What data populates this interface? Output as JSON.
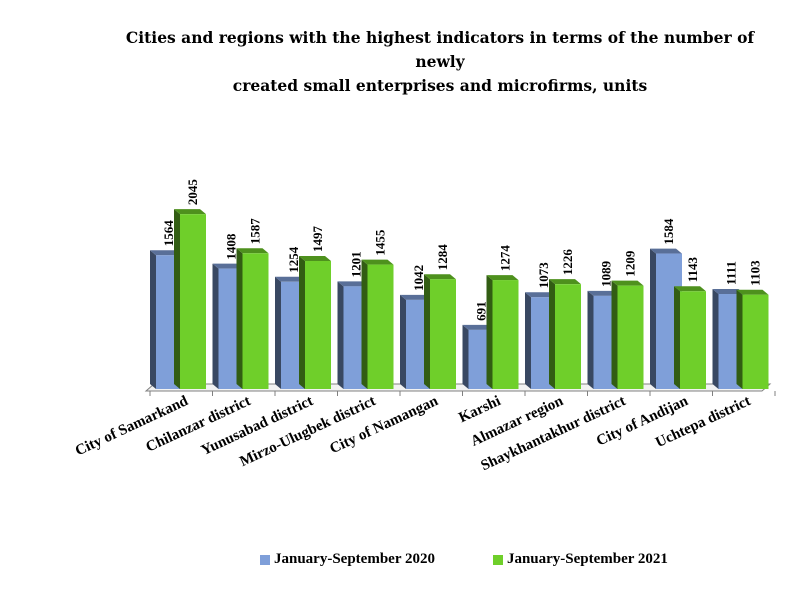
{
  "chart_data": {
    "type": "bar",
    "title_lines": [
      "Cities and regions with the highest indicators in terms of the number of newly",
      "created small enterprises and microfirms, units"
    ],
    "categories": [
      "City of Samarkand",
      "Chilanzar district",
      "Yunusabad district",
      "Mirzo-Ulugbek district",
      "City of Namangan",
      "Karshi",
      "Almazar region",
      "Shaykhantakhur district",
      "City of Andijan",
      "Uchtepa district"
    ],
    "series": [
      {
        "name": "January-September 2020",
        "values": [
          1564,
          1408,
          1254,
          1201,
          1042,
          691,
          1073,
          1089,
          1584,
          1111
        ],
        "color": "#7f9fd9"
      },
      {
        "name": "January-September 2021",
        "values": [
          2045,
          1587,
          1497,
          1455,
          1284,
          1274,
          1226,
          1209,
          1143,
          1103
        ],
        "color": "#6fcf2a"
      }
    ],
    "ylim": [
      0,
      2200
    ],
    "xlabel": "",
    "ylabel": "",
    "legend_position": "bottom"
  }
}
